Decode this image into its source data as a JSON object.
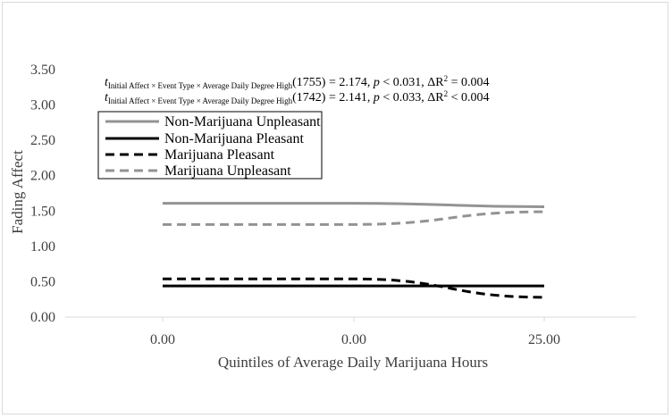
{
  "chart_data": {
    "type": "line",
    "title": "",
    "xlabel": "Quintiles of Average Daily Marijuana Hours",
    "ylabel": "Fading Affect",
    "categories": [
      "0.00",
      "0.00",
      "25.00"
    ],
    "ylim": [
      0,
      3.5
    ],
    "yticks": [
      "0.00",
      "0.50",
      "1.00",
      "1.50",
      "2.00",
      "2.50",
      "3.00",
      "3.50"
    ],
    "grid": false,
    "legend_position": "upper-left",
    "series": [
      {
        "name": "Non-Marijuana Unpleasant",
        "values": [
          1.61,
          1.61,
          1.56
        ],
        "color": "#939393",
        "dash": "solid"
      },
      {
        "name": "Non-Marijuana Pleasant",
        "values": [
          0.44,
          0.44,
          0.44
        ],
        "color": "#000000",
        "dash": "solid"
      },
      {
        "name": "Marijuana Pleasant",
        "values": [
          0.54,
          0.54,
          0.28
        ],
        "color": "#000000",
        "dash": "dashed"
      },
      {
        "name": "Marijuana Unpleasant",
        "values": [
          1.31,
          1.31,
          1.49
        ],
        "color": "#939393",
        "dash": "dashed"
      }
    ],
    "annotations": [
      {
        "t": "t",
        "sub": "Initial Affect × Event Type × Average Daily Degree High",
        "df": "(1755)",
        "rest": " = 2.174, ",
        "p": "p",
        "prest": " < 0.031, ΔR",
        "sup": "2",
        "end": " = 0.004"
      },
      {
        "t": "t",
        "sub": "Initial Affect × Event Type × Average Daily Degree High",
        "df": "(1742)",
        "rest": " = 2.141, ",
        "p": "p",
        "prest": " < 0.033, ΔR",
        "sup": "2",
        "end": " < 0.004"
      }
    ]
  }
}
